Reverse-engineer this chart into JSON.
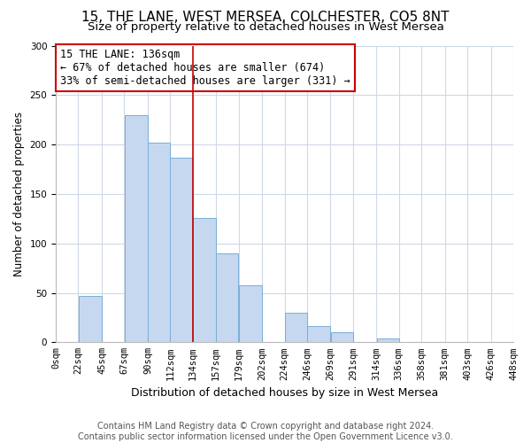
{
  "title": "15, THE LANE, WEST MERSEA, COLCHESTER, CO5 8NT",
  "subtitle": "Size of property relative to detached houses in West Mersea",
  "xlabel": "Distribution of detached houses by size in West Mersea",
  "ylabel": "Number of detached properties",
  "bar_edges": [
    0,
    22,
    45,
    67,
    90,
    112,
    134,
    157,
    179,
    202,
    224,
    246,
    269,
    291,
    314,
    336,
    358,
    381,
    403,
    426,
    448
  ],
  "bar_heights": [
    0,
    47,
    0,
    230,
    202,
    187,
    126,
    90,
    58,
    0,
    30,
    16,
    10,
    0,
    4,
    0,
    0,
    0,
    0,
    0
  ],
  "tick_labels": [
    "0sqm",
    "22sqm",
    "45sqm",
    "67sqm",
    "90sqm",
    "112sqm",
    "134sqm",
    "157sqm",
    "179sqm",
    "202sqm",
    "224sqm",
    "246sqm",
    "269sqm",
    "291sqm",
    "314sqm",
    "336sqm",
    "358sqm",
    "381sqm",
    "403sqm",
    "426sqm",
    "448sqm"
  ],
  "bar_color": "#c5d8f0",
  "bar_edge_color": "#7aaed6",
  "vline_x": 134,
  "vline_color": "#cc0000",
  "annotation_box_text": "15 THE LANE: 136sqm\n← 67% of detached houses are smaller (674)\n33% of semi-detached houses are larger (331) →",
  "annotation_box_color": "#cc0000",
  "annotation_box_fill": "#ffffff",
  "ylim": [
    0,
    300
  ],
  "yticks": [
    0,
    50,
    100,
    150,
    200,
    250,
    300
  ],
  "background_color": "#ffffff",
  "grid_color": "#d0d8e8",
  "footer": "Contains HM Land Registry data © Crown copyright and database right 2024.\nContains public sector information licensed under the Open Government Licence v3.0.",
  "title_fontsize": 11,
  "subtitle_fontsize": 9.5,
  "xlabel_fontsize": 9,
  "ylabel_fontsize": 8.5,
  "tick_fontsize": 7.5,
  "annotation_fontsize": 8.5,
  "footer_fontsize": 7
}
